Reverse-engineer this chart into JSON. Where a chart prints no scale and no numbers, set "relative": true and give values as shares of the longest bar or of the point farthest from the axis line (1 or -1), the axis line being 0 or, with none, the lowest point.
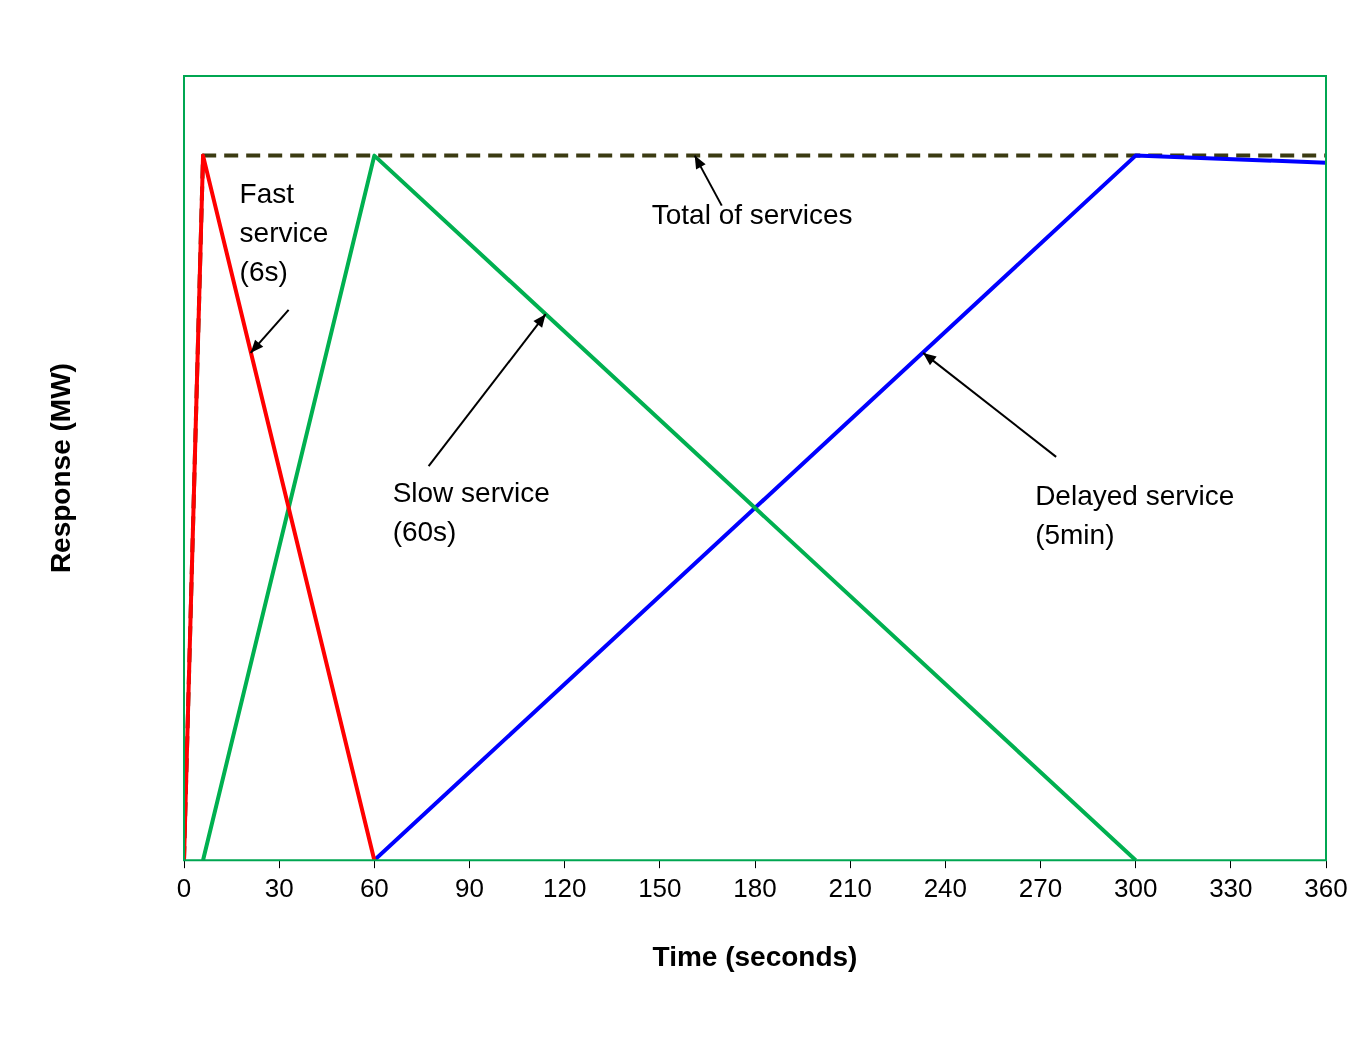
{
  "chart_data": {
    "type": "line",
    "relative": true,
    "xlabel": "Time (seconds)",
    "ylabel": "Response (MW)",
    "xlim": [
      0,
      360
    ],
    "xticks": [
      0,
      30,
      60,
      90,
      120,
      150,
      180,
      210,
      240,
      270,
      300,
      330,
      360
    ],
    "grid": false,
    "legend": false,
    "marker": "none",
    "series": [
      {
        "color": "#ff0000",
        "x": [
          0,
          6,
          60
        ],
        "values": [
          0,
          1,
          0
        ]
      },
      {
        "color": "#00b050",
        "x": [
          6,
          60,
          300
        ],
        "values": [
          0,
          1,
          0
        ]
      },
      {
        "color": "#0000ff",
        "x": [
          60,
          300,
          360
        ],
        "values": [
          0,
          1,
          0.99
        ]
      },
      {
        "color": "#3b3b12",
        "x": [
          0,
          6,
          360
        ],
        "values": [
          0,
          1,
          1
        ],
        "line_style": "dashed"
      }
    ],
    "annotations": [
      {
        "text": "Fast\nservice\n(6s)",
        "x": 21,
        "y": 0.72
      },
      {
        "text": "Slow service\n(60s)",
        "x": 114,
        "y": 0.775
      },
      {
        "text": "Total of services",
        "x": 161,
        "y": 1
      },
      {
        "text": "Delayed service\n(5min)",
        "x": 233,
        "y": 0.72
      }
    ]
  }
}
